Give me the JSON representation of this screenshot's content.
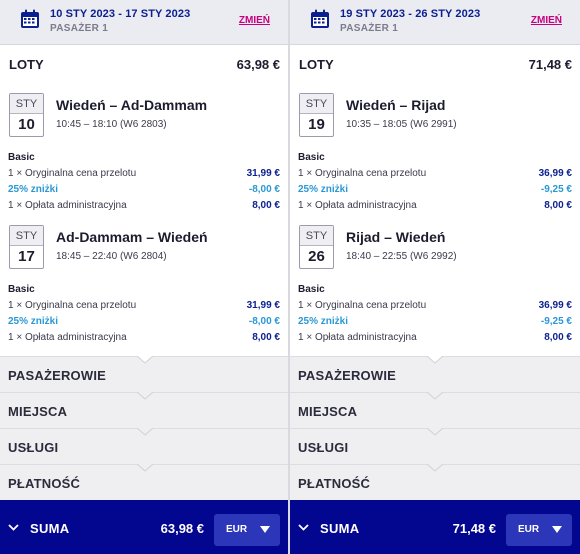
{
  "panels": [
    {
      "dates": "10 STY 2023 - 17 STY 2023",
      "passengers": "PASAŻER 1",
      "change": "ZMIEŃ",
      "section_title": "LOTY",
      "section_total": "63,98 €",
      "flights": [
        {
          "month": "STY",
          "day": "10",
          "route": "Wiedeń – Ad-Dammam",
          "times": "10:45 – 18:10 (W6 2803)",
          "fare_name": "Basic",
          "rows": [
            {
              "label": "1 × Oryginalna cena przelotu",
              "value": "31,99 €"
            },
            {
              "label": "25% zniżki",
              "value": "-8,00 €"
            },
            {
              "label": "1 × Opłata administracyjna",
              "value": "8,00 €"
            }
          ]
        },
        {
          "month": "STY",
          "day": "17",
          "route": "Ad-Dammam – Wiedeń",
          "times": "18:45 – 22:40 (W6 2804)",
          "fare_name": "Basic",
          "rows": [
            {
              "label": "1 × Oryginalna cena przelotu",
              "value": "31,99 €"
            },
            {
              "label": "25% zniżki",
              "value": "-8,00 €"
            },
            {
              "label": "1 × Opłata administracyjna",
              "value": "8,00 €"
            }
          ]
        }
      ],
      "sections": [
        "PASAŻEROWIE",
        "MIEJSCA",
        "USŁUGI",
        "PŁATNOŚĆ"
      ],
      "sum_label": "SUMA",
      "sum_total": "63,98 €",
      "currency": "EUR"
    },
    {
      "dates": "19 STY 2023 - 26 STY 2023",
      "passengers": "PASAŻER 1",
      "change": "ZMIEŃ",
      "section_title": "LOTY",
      "section_total": "71,48 €",
      "flights": [
        {
          "month": "STY",
          "day": "19",
          "route": "Wiedeń – Rijad",
          "times": "10:35 – 18:05 (W6 2991)",
          "fare_name": "Basic",
          "rows": [
            {
              "label": "1 × Oryginalna cena przelotu",
              "value": "36,99 €"
            },
            {
              "label": "25% zniżki",
              "value": "-9,25 €"
            },
            {
              "label": "1 × Opłata administracyjna",
              "value": "8,00 €"
            }
          ]
        },
        {
          "month": "STY",
          "day": "26",
          "route": "Rijad – Wiedeń",
          "times": "18:40 – 22:55 (W6 2992)",
          "fare_name": "Basic",
          "rows": [
            {
              "label": "1 × Oryginalna cena przelotu",
              "value": "36,99 €"
            },
            {
              "label": "25% zniżki",
              "value": "-9,25 €"
            },
            {
              "label": "1 × Opłata administracyjna",
              "value": "8,00 €"
            }
          ]
        }
      ],
      "sections": [
        "PASAŻEROWIE",
        "MIEJSCA",
        "USŁUGI",
        "PŁATNOŚĆ"
      ],
      "sum_label": "SUMA",
      "sum_total": "71,48 €",
      "currency": "EUR"
    }
  ],
  "icons": {
    "calendar": "calendar-icon",
    "chevron_notch": "chevron-down-icon",
    "collapse": "chevron-down-icon",
    "dropdown": "caret-down-icon"
  },
  "colors": {
    "brand_navy": "#03068f",
    "accent_pink": "#c6007e",
    "discount_blue": "#2a98d4",
    "price_navy": "#0b1f8f"
  }
}
